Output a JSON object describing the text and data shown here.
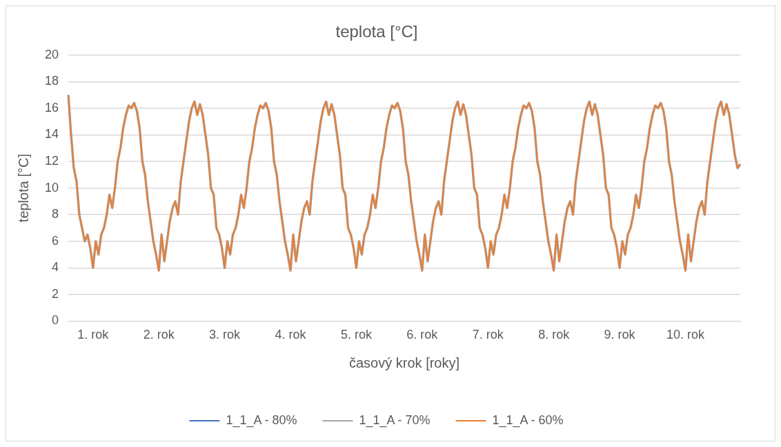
{
  "chart_data": {
    "type": "line",
    "title": "teplota [°C]",
    "xlabel": "časový krok [roky]",
    "ylabel": "teplota [°C]",
    "categories": [
      null,
      null,
      null,
      null,
      null,
      null,
      null,
      null,
      null,
      "1. rok",
      null,
      null,
      null,
      null,
      null,
      null,
      null,
      null,
      null,
      null,
      null,
      null,
      null,
      null,
      null,
      null,
      null,
      null,
      null,
      null,
      null,
      null,
      null,
      "2. rok",
      null,
      null,
      null,
      null,
      null,
      null,
      null,
      null,
      null,
      null,
      null,
      null,
      null,
      null,
      null,
      null,
      null,
      null,
      null,
      null,
      null,
      null,
      null,
      "3. rok",
      null,
      null,
      null,
      null,
      null,
      null,
      null,
      null,
      null,
      null,
      null,
      null,
      null,
      null,
      null,
      null,
      null,
      null,
      null,
      null,
      null,
      null,
      null,
      "4. rok",
      null,
      null,
      null,
      null,
      null,
      null,
      null,
      null,
      null,
      null,
      null,
      null,
      null,
      null,
      null,
      null,
      null,
      null,
      null,
      null,
      null,
      null,
      null,
      "5. rok",
      null,
      null,
      null,
      null,
      null,
      null,
      null,
      null,
      null,
      null,
      null,
      null,
      null,
      null,
      null,
      null,
      null,
      null,
      null,
      null,
      null,
      null,
      null,
      "6. rok",
      null,
      null,
      null,
      null,
      null,
      null,
      null,
      null,
      null,
      null,
      null,
      null,
      null,
      null,
      null,
      null,
      null,
      null,
      null,
      null,
      null,
      null,
      null,
      "7. rok",
      null,
      null,
      null,
      null,
      null,
      null,
      null,
      null,
      null,
      null,
      null,
      null,
      null,
      null,
      null,
      null,
      null,
      null,
      null,
      null,
      null,
      null,
      null,
      "8. rok",
      null,
      null,
      null,
      null,
      null,
      null,
      null,
      null,
      null,
      null,
      null,
      null,
      null,
      null,
      null,
      null,
      null,
      null,
      null,
      null,
      null,
      null,
      null,
      "9. rok",
      null,
      null,
      null,
      null,
      null,
      null,
      null,
      null,
      null,
      null,
      null,
      null,
      null,
      null,
      null,
      null,
      null,
      null,
      null,
      null,
      null,
      null,
      null,
      "10. rok",
      null,
      null,
      null,
      null,
      null,
      null,
      null,
      null,
      null,
      null,
      null,
      null,
      null,
      null,
      null,
      null,
      null,
      null,
      null,
      null
    ],
    "series": [
      {
        "name": "1_1_A - 80%",
        "color": "#4472c4",
        "values": [
          null,
          null,
          null,
          null,
          null,
          null,
          null,
          null,
          null,
          null,
          null,
          null,
          null,
          null,
          null,
          null,
          null,
          null,
          null,
          null,
          null,
          null,
          null,
          null,
          null,
          null,
          null,
          null,
          null,
          null,
          null,
          null,
          null,
          null,
          null,
          null,
          null,
          null,
          null,
          null,
          null,
          null,
          null,
          null,
          null,
          null,
          null,
          null,
          null,
          null,
          null,
          null,
          null,
          null,
          null,
          null,
          null,
          null,
          null,
          null,
          null,
          null,
          null,
          null,
          null,
          null,
          null,
          null,
          null,
          null,
          null,
          null,
          null,
          null,
          null,
          null,
          null,
          null,
          null,
          null,
          null,
          null,
          null,
          null,
          null,
          null,
          null,
          null,
          null,
          null,
          null,
          null,
          null,
          null,
          null,
          null,
          null,
          null,
          null,
          null,
          null,
          null,
          null,
          null,
          null,
          null,
          null,
          null,
          null,
          null,
          null,
          null,
          null,
          null,
          null,
          null,
          null,
          null,
          null,
          null,
          null,
          null,
          null,
          null,
          null,
          null,
          null,
          null,
          null,
          null,
          null,
          null,
          null,
          null,
          null,
          null,
          null,
          null,
          null,
          null,
          null,
          null,
          null,
          null,
          null,
          null,
          null,
          null,
          null,
          null,
          null,
          null,
          null,
          null,
          null,
          null,
          null,
          null,
          null,
          null,
          null,
          null,
          null,
          null,
          null,
          null,
          null,
          null,
          null,
          null,
          null,
          null,
          null,
          null,
          null,
          null,
          null,
          null,
          null,
          null,
          null,
          null,
          null,
          null,
          null,
          null,
          null,
          null,
          null,
          null,
          null,
          null,
          null,
          null,
          null,
          null,
          null,
          null,
          null,
          null,
          null,
          null,
          null,
          null,
          null,
          null,
          null,
          null,
          null,
          null,
          null,
          null,
          null,
          null,
          null,
          null,
          null,
          null,
          null,
          null,
          null,
          null,
          null,
          null,
          null,
          null,
          null,
          null,
          null,
          null,
          null,
          null,
          null,
          null,
          null,
          null,
          null,
          null,
          null,
          null,
          null,
          null,
          null,
          null,
          null,
          null
        ]
      },
      {
        "name": "1_1_A - 70%",
        "color": "#a5a5a5",
        "values": [
          17,
          14,
          11.5,
          10.5,
          8,
          7,
          6,
          6.5,
          5.5,
          4,
          6,
          5,
          6.5,
          7,
          8,
          9.5,
          8.5,
          10,
          12,
          13,
          14.5,
          15.5,
          16.2,
          16,
          16.4,
          15.8,
          14.5,
          12,
          11,
          9,
          7.5,
          6,
          5,
          3.8,
          6.5,
          4.5,
          6,
          7.5,
          8.5,
          9,
          8,
          10.5,
          12,
          13.5,
          15,
          16,
          16.5,
          15.5,
          16.3,
          15.5,
          14,
          12.5,
          10,
          9.5,
          7,
          6.5,
          5.5,
          4,
          6,
          5,
          6.5,
          7,
          8,
          9.5,
          8.5,
          10,
          12,
          13,
          14.5,
          15.5,
          16.2,
          16,
          16.4,
          15.8,
          14.5,
          12,
          11,
          9,
          7.5,
          6,
          5,
          3.8,
          6.5,
          4.5,
          6,
          7.5,
          8.5,
          9,
          8,
          10.5,
          12,
          13.5,
          15,
          16,
          16.5,
          15.5,
          16.3,
          15.5,
          14,
          12.5,
          10,
          9.5,
          7,
          6.5,
          5.5,
          4,
          6,
          5,
          6.5,
          7,
          8,
          9.5,
          8.5,
          10,
          12,
          13,
          14.5,
          15.5,
          16.2,
          16,
          16.4,
          15.8,
          14.5,
          12,
          11,
          9,
          7.5,
          6,
          5,
          3.8,
          6.5,
          4.5,
          6,
          7.5,
          8.5,
          9,
          8,
          10.5,
          12,
          13.5,
          15,
          16,
          16.5,
          15.5,
          16.3,
          15.5,
          14,
          12.5,
          10,
          9.5,
          7,
          6.5,
          5.5,
          4,
          6,
          5,
          6.5,
          7,
          8,
          9.5,
          8.5,
          10,
          12,
          13,
          14.5,
          15.5,
          16.2,
          16,
          16.4,
          15.8,
          14.5,
          12,
          11,
          9,
          7.5,
          6,
          5,
          3.8,
          6.5,
          4.5,
          6,
          7.5,
          8.5,
          9,
          8,
          10.5,
          12,
          13.5,
          15,
          16,
          16.5,
          15.5,
          16.3,
          15.5,
          14,
          12.5,
          10,
          9.5,
          7,
          6.5,
          5.5,
          4,
          6,
          5,
          6.5,
          7,
          8,
          9.5,
          8.5,
          10,
          12,
          13,
          14.5,
          15.5,
          16.2,
          16,
          16.4,
          15.8,
          14.5,
          12,
          11,
          9,
          7.5,
          6,
          5,
          3.8,
          6.5,
          4.5,
          6,
          7.5,
          8.5,
          9,
          8,
          10.5,
          12,
          13.5,
          15,
          16,
          16.5,
          15.5,
          16.3,
          15.5,
          14,
          12.5,
          11.5,
          11.8
        ]
      },
      {
        "name": "1_1_A - 60%",
        "color": "#ed7d31",
        "values": [
          17,
          14,
          11.5,
          10.5,
          8,
          7,
          6,
          6.5,
          5.5,
          4,
          6,
          5,
          6.5,
          7,
          8,
          9.5,
          8.5,
          10,
          12,
          13,
          14.5,
          15.5,
          16.2,
          16,
          16.4,
          15.8,
          14.5,
          12,
          11,
          9,
          7.5,
          6,
          5,
          3.8,
          6.5,
          4.5,
          6,
          7.5,
          8.5,
          9,
          8,
          10.5,
          12,
          13.5,
          15,
          16,
          16.5,
          15.5,
          16.3,
          15.5,
          14,
          12.5,
          10,
          9.5,
          7,
          6.5,
          5.5,
          4,
          6,
          5,
          6.5,
          7,
          8,
          9.5,
          8.5,
          10,
          12,
          13,
          14.5,
          15.5,
          16.2,
          16,
          16.4,
          15.8,
          14.5,
          12,
          11,
          9,
          7.5,
          6,
          5,
          3.8,
          6.5,
          4.5,
          6,
          7.5,
          8.5,
          9,
          8,
          10.5,
          12,
          13.5,
          15,
          16,
          16.5,
          15.5,
          16.3,
          15.5,
          14,
          12.5,
          10,
          9.5,
          7,
          6.5,
          5.5,
          4,
          6,
          5,
          6.5,
          7,
          8,
          9.5,
          8.5,
          10,
          12,
          13,
          14.5,
          15.5,
          16.2,
          16,
          16.4,
          15.8,
          14.5,
          12,
          11,
          9,
          7.5,
          6,
          5,
          3.8,
          6.5,
          4.5,
          6,
          7.5,
          8.5,
          9,
          8,
          10.5,
          12,
          13.5,
          15,
          16,
          16.5,
          15.5,
          16.3,
          15.5,
          14,
          12.5,
          10,
          9.5,
          7,
          6.5,
          5.5,
          4,
          6,
          5,
          6.5,
          7,
          8,
          9.5,
          8.5,
          10,
          12,
          13,
          14.5,
          15.5,
          16.2,
          16,
          16.4,
          15.8,
          14.5,
          12,
          11,
          9,
          7.5,
          6,
          5,
          3.8,
          6.5,
          4.5,
          6,
          7.5,
          8.5,
          9,
          8,
          10.5,
          12,
          13.5,
          15,
          16,
          16.5,
          15.5,
          16.3,
          15.5,
          14,
          12.5,
          10,
          9.5,
          7,
          6.5,
          5.5,
          4,
          6,
          5,
          6.5,
          7,
          8,
          9.5,
          8.5,
          10,
          12,
          13,
          14.5,
          15.5,
          16.2,
          16,
          16.4,
          15.8,
          14.5,
          12,
          11,
          9,
          7.5,
          6,
          5,
          3.8,
          6.5,
          4.5,
          6,
          7.5,
          8.5,
          9,
          8,
          10.5,
          12,
          13.5,
          15,
          16,
          16.5,
          15.5,
          16.3,
          15.5,
          14,
          12.5,
          11.5,
          11.8
        ]
      }
    ],
    "ylim": [
      0,
      20
    ],
    "yticks": [
      0,
      2,
      4,
      6,
      8,
      10,
      12,
      14,
      16,
      18,
      20
    ],
    "grid": "y",
    "legend": "bottom",
    "marker": "none",
    "line_style": "solid"
  }
}
